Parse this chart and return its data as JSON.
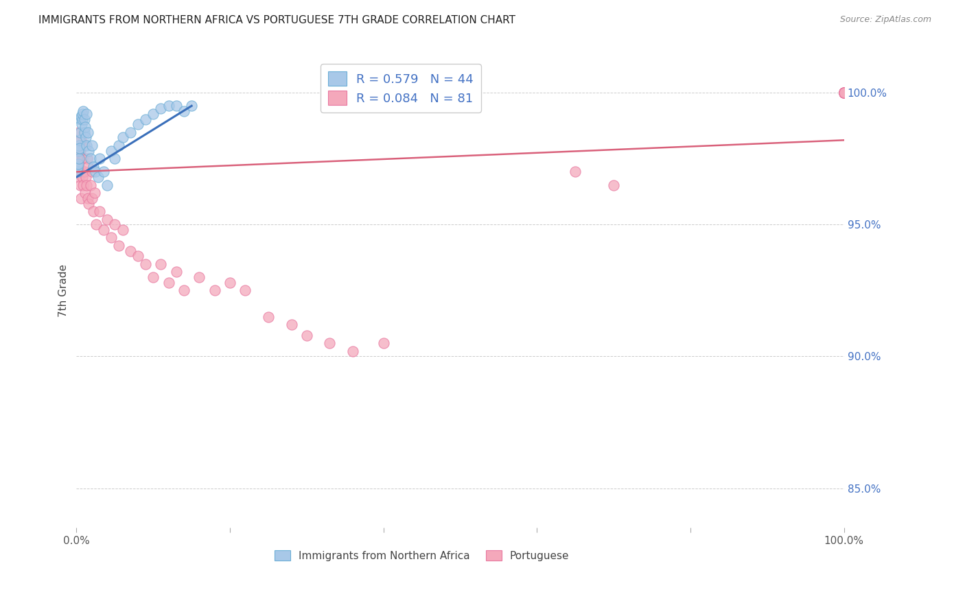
{
  "title": "IMMIGRANTS FROM NORTHERN AFRICA VS PORTUGUESE 7TH GRADE CORRELATION CHART",
  "source": "Source: ZipAtlas.com",
  "ylabel": "7th Grade",
  "ylabel_right_ticks": [
    85.0,
    90.0,
    95.0,
    100.0
  ],
  "xlim": [
    0.0,
    100.0
  ],
  "ylim": [
    83.5,
    101.5
  ],
  "blue_label": "Immigrants from Northern Africa",
  "pink_label": "Portuguese",
  "blue_R": 0.579,
  "blue_N": 44,
  "pink_R": 0.084,
  "pink_N": 81,
  "blue_color": "#a8c8e8",
  "pink_color": "#f4a8bb",
  "blue_edge_color": "#6baed6",
  "pink_edge_color": "#e878a0",
  "blue_line_color": "#3a6fba",
  "pink_line_color": "#d9607a",
  "background_color": "#ffffff",
  "grid_color": "#cccccc",
  "title_color": "#222222",
  "source_color": "#888888",
  "axis_label_color": "#444444",
  "right_axis_color": "#4472c4",
  "legend_R_color": "#4472c4",
  "blue_x": [
    0.1,
    0.15,
    0.2,
    0.2,
    0.3,
    0.3,
    0.4,
    0.4,
    0.5,
    0.5,
    0.6,
    0.7,
    0.8,
    0.8,
    0.9,
    1.0,
    1.0,
    1.1,
    1.2,
    1.3,
    1.3,
    1.5,
    1.6,
    1.8,
    2.0,
    2.2,
    2.5,
    2.8,
    3.0,
    3.5,
    4.0,
    4.5,
    5.0,
    5.5,
    6.0,
    7.0,
    8.0,
    9.0,
    10.0,
    11.0,
    12.0,
    13.0,
    14.0,
    15.0
  ],
  "blue_y": [
    97.0,
    97.2,
    97.3,
    97.8,
    97.5,
    98.0,
    98.2,
    97.9,
    98.5,
    99.0,
    99.1,
    98.8,
    99.0,
    99.2,
    99.3,
    98.5,
    99.0,
    98.7,
    98.3,
    98.0,
    99.2,
    98.5,
    97.8,
    97.5,
    98.0,
    97.2,
    97.0,
    96.8,
    97.5,
    97.0,
    96.5,
    97.8,
    97.5,
    98.0,
    98.3,
    98.5,
    98.8,
    99.0,
    99.2,
    99.4,
    99.5,
    99.5,
    99.3,
    99.5
  ],
  "pink_x": [
    0.1,
    0.15,
    0.2,
    0.25,
    0.3,
    0.35,
    0.4,
    0.4,
    0.5,
    0.5,
    0.6,
    0.6,
    0.7,
    0.8,
    0.8,
    0.9,
    1.0,
    1.0,
    1.1,
    1.2,
    1.3,
    1.4,
    1.5,
    1.5,
    1.6,
    1.8,
    2.0,
    2.0,
    2.2,
    2.4,
    2.6,
    3.0,
    3.5,
    4.0,
    4.5,
    5.0,
    5.5,
    6.0,
    7.0,
    8.0,
    9.0,
    10.0,
    11.0,
    12.0,
    13.0,
    14.0,
    16.0,
    18.0,
    20.0,
    22.0,
    25.0,
    28.0,
    30.0,
    33.0,
    36.0,
    40.0,
    65.0,
    70.0,
    100.0,
    100.0,
    100.0,
    100.0,
    100.0,
    100.0,
    100.0,
    100.0,
    100.0,
    100.0,
    100.0,
    100.0,
    100.0,
    100.0,
    100.0,
    100.0,
    100.0,
    100.0,
    100.0,
    100.0,
    100.0,
    100.0,
    100.0
  ],
  "pink_y": [
    97.8,
    97.5,
    98.5,
    97.0,
    97.2,
    96.8,
    97.5,
    98.0,
    96.5,
    97.8,
    96.0,
    98.2,
    97.0,
    96.8,
    97.5,
    96.5,
    97.0,
    98.0,
    96.2,
    96.8,
    96.5,
    97.5,
    96.0,
    97.2,
    95.8,
    96.5,
    96.0,
    97.0,
    95.5,
    96.2,
    95.0,
    95.5,
    94.8,
    95.2,
    94.5,
    95.0,
    94.2,
    94.8,
    94.0,
    93.8,
    93.5,
    93.0,
    93.5,
    92.8,
    93.2,
    92.5,
    93.0,
    92.5,
    92.8,
    92.5,
    91.5,
    91.2,
    90.8,
    90.5,
    90.2,
    90.5,
    97.0,
    96.5,
    100.0,
    100.0,
    100.0,
    100.0,
    100.0,
    100.0,
    100.0,
    100.0,
    100.0,
    100.0,
    100.0,
    100.0,
    100.0,
    100.0,
    100.0,
    100.0,
    100.0,
    100.0,
    100.0,
    100.0,
    100.0,
    100.0,
    100.0
  ],
  "pink_x_real": [
    0.1,
    0.15,
    0.2,
    0.25,
    0.3,
    0.35,
    0.4,
    0.4,
    0.5,
    0.5,
    0.6,
    0.6,
    0.7,
    0.8,
    0.8,
    0.9,
    1.0,
    1.0,
    1.1,
    1.2,
    1.3,
    1.4,
    1.5,
    1.5,
    1.6,
    1.8,
    2.0,
    2.0,
    2.2,
    2.4,
    2.6,
    3.0,
    3.5,
    4.0,
    4.5,
    5.0,
    5.5,
    6.0,
    7.0,
    8.0,
    9.0,
    10.0,
    11.0,
    12.0,
    13.0,
    14.0,
    16.0,
    18.0,
    20.0,
    22.0,
    25.0,
    28.0,
    30.0,
    33.0,
    36.0,
    40.0,
    65.0,
    70.0,
    100.0,
    100.0,
    100.0,
    100.0,
    100.0,
    100.0,
    100.0,
    100.0,
    100.0,
    100.0,
    100.0,
    100.0,
    100.0,
    100.0,
    100.0,
    100.0,
    100.0,
    100.0,
    100.0,
    100.0,
    100.0,
    100.0,
    100.0
  ],
  "pink_trend_x": [
    0.0,
    100.0
  ],
  "pink_trend_y": [
    97.0,
    98.2
  ],
  "blue_trend_x": [
    0.0,
    15.0
  ],
  "blue_trend_y": [
    96.8,
    99.5
  ]
}
